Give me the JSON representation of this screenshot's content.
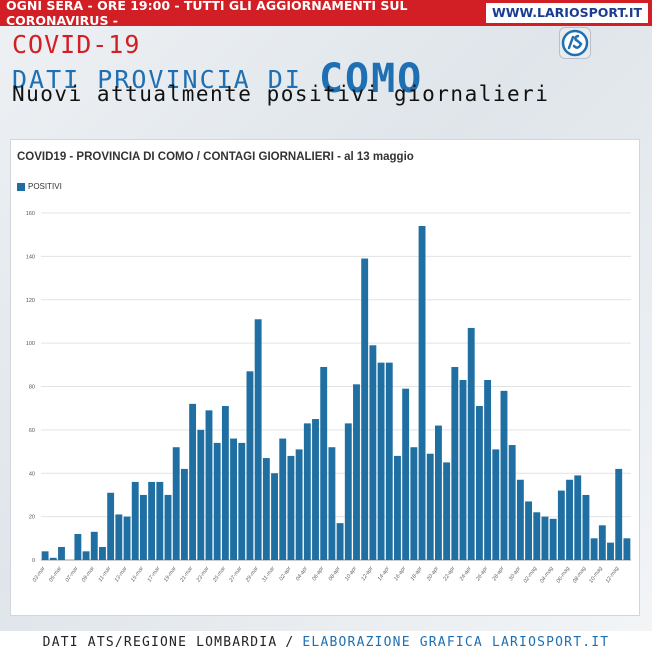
{
  "banner": {
    "headline": "OGNI SERA - ORE 19:00 - TUTTI GLI AGGIORNAMENTI SUL CORONAVIRUS -",
    "site": "WWW.LARIOSPORT.IT"
  },
  "header": {
    "line1": "COVID-19",
    "line2_prefix": "DATI PROVINCIA DI",
    "line2_city": "COMO",
    "line3": "Nuovi attualmente positivi giornalieri"
  },
  "footer": {
    "source": "DATI ATS/REGIONE LOMBARDIA",
    "separator": "/",
    "credit": "ELABORAZIONE GRAFICA LARIOSPORT.IT"
  },
  "colors": {
    "accent_red": "#d21f26",
    "brand_blue": "#1f6fb3",
    "bar": "#1f6fa3"
  },
  "chart_data": {
    "type": "bar",
    "title": "COVID19 - PROVINCIA DI COMO / CONTAGI GIORNALIERI - al 13 maggio",
    "xlabel": "",
    "ylabel": "",
    "ylim": [
      0,
      160
    ],
    "yticks": [
      0,
      20,
      40,
      60,
      80,
      100,
      120,
      140,
      160
    ],
    "grid": true,
    "legend": "top-left",
    "categories": [
      "03-mar",
      "04-mar",
      "05-mar",
      "06-mar",
      "07-mar",
      "08-mar",
      "09-mar",
      "10-mar",
      "11-mar",
      "12-mar",
      "13-mar",
      "14-mar",
      "15-mar",
      "16-mar",
      "17-mar",
      "18-mar",
      "19-mar",
      "20-mar",
      "21-mar",
      "22-mar",
      "23-mar",
      "24-mar",
      "25-mar",
      "26-mar",
      "27-mar",
      "28-mar",
      "29-mar",
      "30-mar",
      "31-mar",
      "01-apr",
      "02-apr",
      "03-apr",
      "04-apr",
      "05-apr",
      "06-apr",
      "07-apr",
      "08-apr",
      "09-apr",
      "10-apr",
      "11-apr",
      "12-apr",
      "13-apr",
      "14-apr",
      "15-apr",
      "16-apr",
      "17-apr",
      "18-apr",
      "19-apr",
      "20-apr",
      "21-apr",
      "22-apr",
      "23-apr",
      "24-apr",
      "25-apr",
      "26-apr",
      "27-apr",
      "28-apr",
      "29-apr",
      "30-apr",
      "01-mag",
      "02-mag",
      "03-mag",
      "04-mag",
      "05-mag",
      "06-mag",
      "07-mag",
      "08-mag",
      "09-mag",
      "10-mag",
      "11-mag",
      "12-mag",
      "13-mag"
    ],
    "tick_labels": [
      "03-mar",
      "05-mar",
      "07-mar",
      "09-mar",
      "11-mar",
      "13-mar",
      "15-mar",
      "17-mar",
      "19-mar",
      "21-mar",
      "23-mar",
      "25-mar",
      "27-mar",
      "29-mar",
      "31-mar",
      "02-apr",
      "04-apr",
      "06-apr",
      "08-apr",
      "10-apr",
      "12-apr",
      "14-apr",
      "16-apr",
      "18-apr",
      "20-apr",
      "22-apr",
      "24-apr",
      "26-apr",
      "28-apr",
      "30-apr",
      "02-mag",
      "04-mag",
      "06-mag",
      "08-mag",
      "10-mag",
      "12-mag"
    ],
    "series": [
      {
        "name": "POSITIVI",
        "values": [
          4,
          1,
          6,
          0,
          12,
          4,
          13,
          6,
          31,
          21,
          20,
          36,
          30,
          36,
          36,
          30,
          52,
          42,
          72,
          60,
          69,
          54,
          71,
          56,
          54,
          87,
          111,
          47,
          40,
          56,
          48,
          51,
          63,
          65,
          89,
          52,
          17,
          63,
          81,
          139,
          99,
          91,
          91,
          48,
          79,
          52,
          154,
          49,
          62,
          45,
          89,
          83,
          107,
          71,
          83,
          51,
          78,
          53,
          37,
          27,
          22,
          20,
          19,
          32,
          37,
          39,
          30,
          10,
          16,
          8,
          42,
          10
        ]
      }
    ]
  }
}
